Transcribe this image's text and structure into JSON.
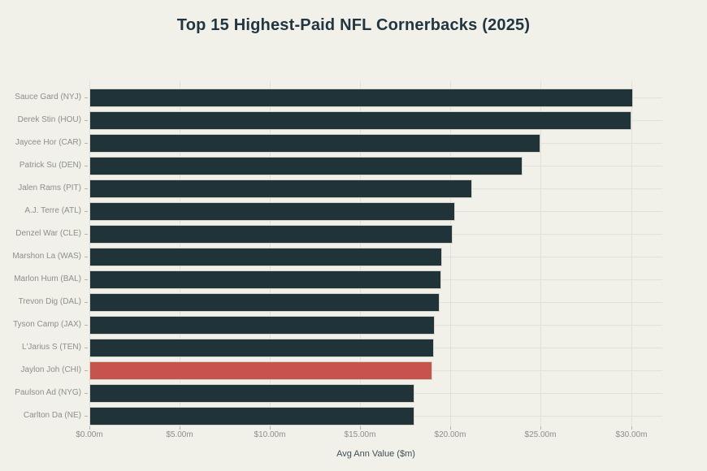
{
  "chart_data": {
    "type": "bar",
    "orientation": "horizontal",
    "title": "Top 15 Highest-Paid NFL Cornerbacks (2025)",
    "xlabel": "Avg Ann Value ($m)",
    "categories": [
      "Sauce Gard (NYJ)",
      "Derek Stin (HOU)",
      "Jaycee Hor (CAR)",
      "Patrick Su (DEN)",
      "Jalen Rams (PIT)",
      "A.J. Terre (ATL)",
      "Denzel War (CLE)",
      "Marshon La (WAS)",
      "Marlon Hum (BAL)",
      "Trevon Dig (DAL)",
      "Tyson Camp (JAX)",
      "L'Jarius S (TEN)",
      "Jaylon Joh (CHI)",
      "Paulson Ad (NYG)",
      "Carlton Da (NE)"
    ],
    "values": [
      30.1,
      30.0,
      25.0,
      24.0,
      21.2,
      20.25,
      20.1,
      19.52,
      19.5,
      19.4,
      19.125,
      19.1,
      19.0,
      18.0,
      18.0
    ],
    "highlight_index": 12,
    "x_tick_values": [
      0,
      5,
      10,
      15,
      20,
      25,
      30
    ],
    "x_tick_labels": [
      "$0.00m",
      "$5.00m",
      "$10.00m",
      "$15.00m",
      "$20.00m",
      "$25.00m",
      "$30.00m"
    ],
    "xlim": [
      0,
      31.73
    ],
    "grid": true,
    "legend": false,
    "colors": {
      "background": "#f1f0e9",
      "bar": "#203339",
      "highlight": "#c6534c",
      "gridline": "#e2e1d9",
      "tick": "#b3b4af",
      "tick_label": "#8d8f8c",
      "title": "#213640",
      "axis_label": "#3e4f58"
    }
  }
}
